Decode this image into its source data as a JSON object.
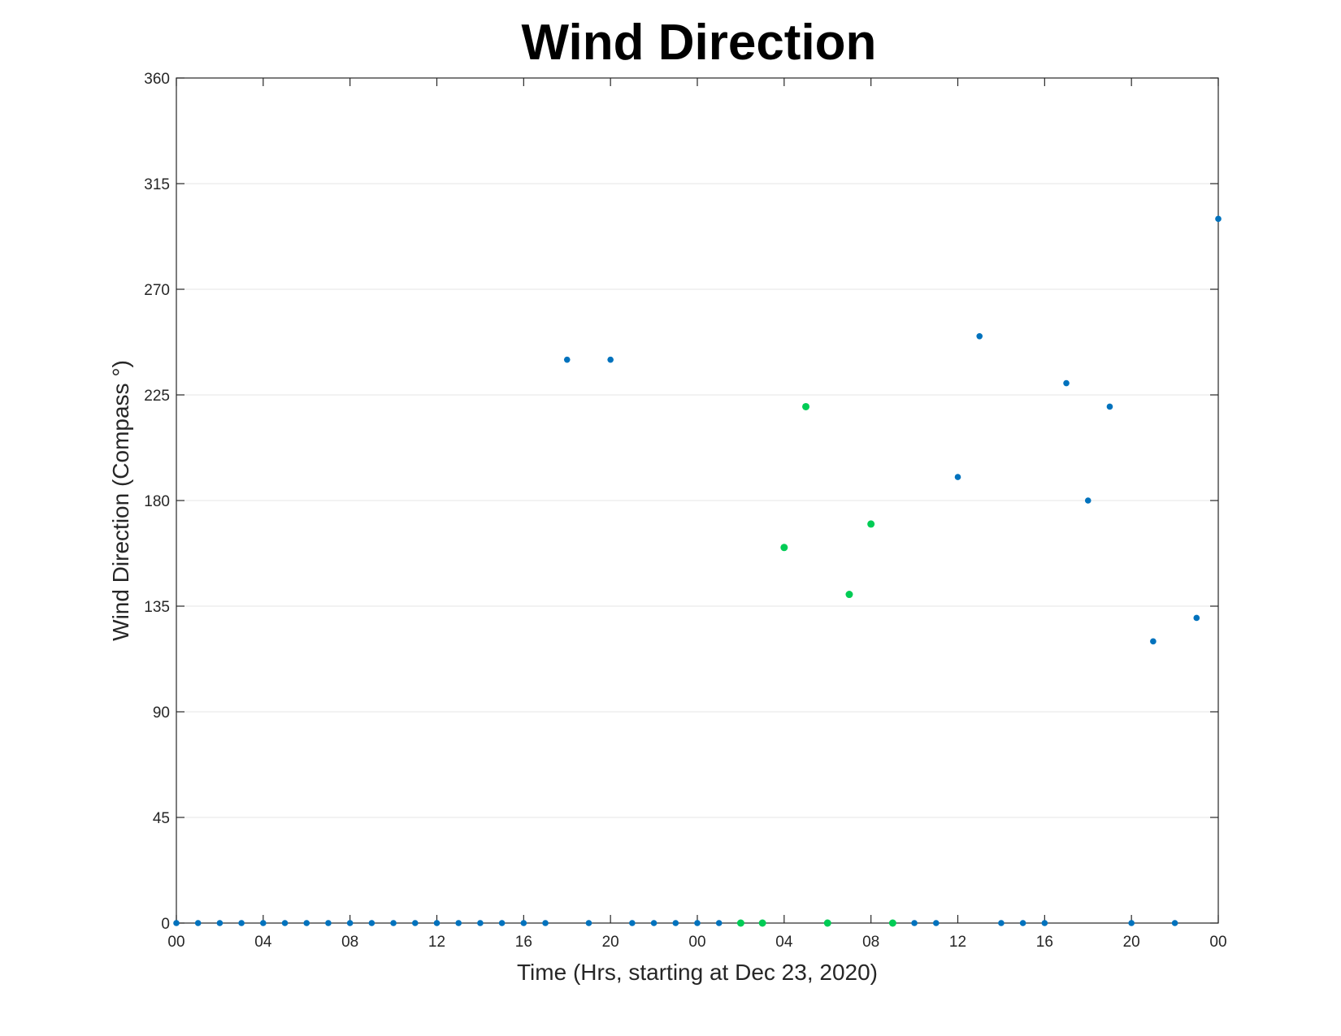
{
  "chart_data": {
    "type": "scatter",
    "title": "Wind Direction",
    "xlabel": "Time (Hrs, starting at Dec 23, 2020)",
    "ylabel": "Wind Direction (Compass °)",
    "x_unit": "hours",
    "xlim": [
      0,
      48
    ],
    "ylim": [
      0,
      360
    ],
    "y_ticks": [
      0,
      45,
      90,
      135,
      180,
      225,
      270,
      315,
      360
    ],
    "x_ticks": [
      0,
      4,
      8,
      12,
      16,
      20,
      24,
      28,
      32,
      36,
      40,
      44,
      48
    ],
    "x_tick_labels": [
      "00",
      "04",
      "08",
      "12",
      "16",
      "20",
      "00",
      "04",
      "08",
      "12",
      "16",
      "20",
      "00"
    ],
    "grid": "horizontal",
    "legend": "none",
    "series": [
      {
        "color": "#0072BD",
        "points": [
          [
            0,
            0
          ],
          [
            1,
            0
          ],
          [
            2,
            0
          ],
          [
            3,
            0
          ],
          [
            4,
            0
          ],
          [
            5,
            0
          ],
          [
            6,
            0
          ],
          [
            7,
            0
          ],
          [
            8,
            0
          ],
          [
            9,
            0
          ],
          [
            10,
            0
          ],
          [
            11,
            0
          ],
          [
            12,
            0
          ],
          [
            13,
            0
          ],
          [
            14,
            0
          ],
          [
            15,
            0
          ],
          [
            16,
            0
          ],
          [
            17,
            0
          ],
          [
            18,
            240
          ],
          [
            19,
            0
          ],
          [
            20,
            240
          ],
          [
            21,
            0
          ],
          [
            22,
            0
          ],
          [
            23,
            0
          ],
          [
            24,
            0
          ],
          [
            25,
            0
          ],
          [
            34,
            0
          ],
          [
            35,
            0
          ],
          [
            36,
            190
          ],
          [
            37,
            250
          ],
          [
            38,
            0
          ],
          [
            39,
            0
          ],
          [
            40,
            0
          ],
          [
            41,
            230
          ],
          [
            42,
            180
          ],
          [
            43,
            220
          ],
          [
            44,
            0
          ],
          [
            45,
            120
          ],
          [
            46,
            0
          ],
          [
            47,
            130
          ],
          [
            48,
            300
          ]
        ]
      },
      {
        "color": "#00CC55",
        "points": [
          [
            26,
            0
          ],
          [
            27,
            0
          ],
          [
            28,
            160
          ],
          [
            29,
            220
          ],
          [
            30,
            0
          ],
          [
            31,
            140
          ],
          [
            32,
            170
          ],
          [
            33,
            0
          ]
        ]
      }
    ]
  }
}
